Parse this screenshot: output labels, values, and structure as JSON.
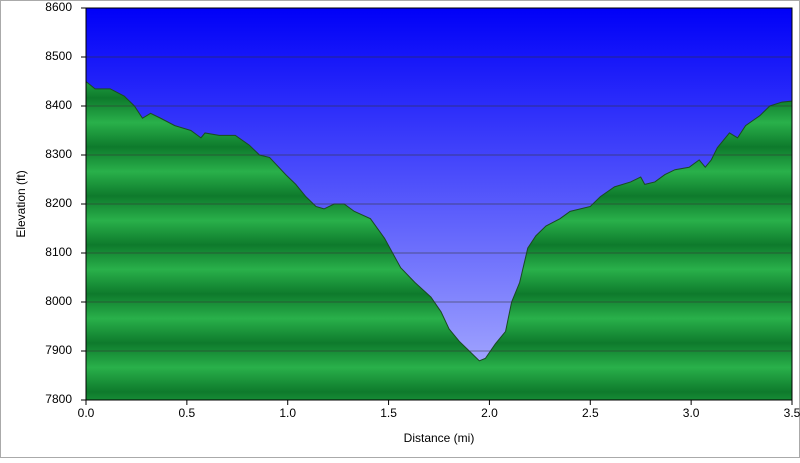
{
  "chart_data": {
    "type": "area",
    "x_label": "Distance (mi)",
    "y_label": "Elevation (ft)",
    "x": [
      0,
      0.045,
      0.12,
      0.19,
      0.24,
      0.28,
      0.32,
      0.37,
      0.44,
      0.52,
      0.57,
      0.59,
      0.66,
      0.74,
      0.81,
      0.86,
      0.91,
      0.99,
      1.04,
      1.09,
      1.14,
      1.18,
      1.23,
      1.28,
      1.33,
      1.41,
      1.48,
      1.56,
      1.63,
      1.71,
      1.76,
      1.8,
      1.85,
      1.9,
      1.95,
      1.98,
      2.03,
      2.08,
      2.11,
      2.15,
      2.19,
      2.23,
      2.28,
      2.35,
      2.4,
      2.5,
      2.55,
      2.62,
      2.7,
      2.75,
      2.77,
      2.82,
      2.87,
      2.92,
      2.99,
      3.04,
      3.07,
      3.1,
      3.13,
      3.19,
      3.23,
      3.27,
      3.34,
      3.39,
      3.45,
      3.5
    ],
    "values": [
      8450,
      8435,
      8435,
      8420,
      8400,
      8375,
      8385,
      8375,
      8360,
      8350,
      8335,
      8345,
      8340,
      8340,
      8320,
      8300,
      8295,
      8260,
      8240,
      8215,
      8195,
      8190,
      8200,
      8200,
      8185,
      8170,
      8130,
      8070,
      8040,
      8010,
      7980,
      7945,
      7920,
      7900,
      7880,
      7885,
      7915,
      7940,
      8000,
      8040,
      8110,
      8135,
      8155,
      8170,
      8185,
      8195,
      8215,
      8235,
      8245,
      8255,
      8240,
      8245,
      8260,
      8270,
      8275,
      8290,
      8275,
      8290,
      8315,
      8345,
      8335,
      8360,
      8380,
      8400,
      8408,
      8410
    ],
    "color": "#1f9a3c",
    "xlim": [
      0,
      3.5
    ],
    "xticks": [
      {
        "value": 0,
        "label": "0.0"
      },
      0.5,
      {
        "value": 1,
        "label": "1.0"
      },
      1.5,
      {
        "value": 2,
        "label": "2.0"
      },
      2.5,
      {
        "value": 3,
        "label": "3.0"
      },
      3.5
    ],
    "ylim": [
      7800,
      8600
    ],
    "yticks": [
      7800,
      7900,
      8000,
      8100,
      8200,
      8300,
      8400,
      8500,
      8600
    ],
    "grid": true
  }
}
